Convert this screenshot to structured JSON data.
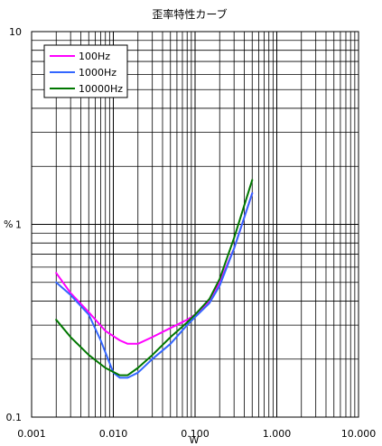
{
  "chart_data": {
    "type": "line",
    "title": "歪率特性カーブ",
    "xlabel": "W",
    "ylabel": "%",
    "x_scale": "log",
    "y_scale": "log",
    "xlim": [
      0.001,
      10
    ],
    "ylim": [
      0.1,
      10
    ],
    "grid": true,
    "legend_position": "top-left",
    "x_tick_labels": [
      "0.001",
      "0.010",
      "0.100",
      "1.000",
      "10.000"
    ],
    "y_tick_labels": [
      "0.1",
      "1",
      "10"
    ],
    "series": [
      {
        "name": "100Hz",
        "color": "#ff00ff",
        "points": [
          [
            0.002,
            0.56
          ],
          [
            0.003,
            0.44
          ],
          [
            0.005,
            0.35
          ],
          [
            0.008,
            0.28
          ],
          [
            0.012,
            0.25
          ],
          [
            0.015,
            0.24
          ],
          [
            0.02,
            0.24
          ],
          [
            0.03,
            0.26
          ],
          [
            0.05,
            0.29
          ],
          [
            0.08,
            0.32
          ],
          [
            0.1,
            0.34
          ],
          [
            0.15,
            0.4
          ],
          [
            0.2,
            0.5
          ],
          [
            0.3,
            0.75
          ],
          [
            0.5,
            1.45
          ]
        ]
      },
      {
        "name": "1000Hz",
        "color": "#3366ff",
        "points": [
          [
            0.002,
            0.5
          ],
          [
            0.003,
            0.43
          ],
          [
            0.005,
            0.34
          ],
          [
            0.007,
            0.25
          ],
          [
            0.01,
            0.17
          ],
          [
            0.012,
            0.16
          ],
          [
            0.015,
            0.16
          ],
          [
            0.02,
            0.17
          ],
          [
            0.03,
            0.2
          ],
          [
            0.05,
            0.24
          ],
          [
            0.08,
            0.3
          ],
          [
            0.1,
            0.33
          ],
          [
            0.15,
            0.39
          ],
          [
            0.2,
            0.48
          ],
          [
            0.3,
            0.75
          ],
          [
            0.5,
            1.45
          ]
        ]
      },
      {
        "name": "10000Hz",
        "color": "#007700",
        "points": [
          [
            0.002,
            0.32
          ],
          [
            0.003,
            0.26
          ],
          [
            0.005,
            0.21
          ],
          [
            0.008,
            0.18
          ],
          [
            0.012,
            0.165
          ],
          [
            0.015,
            0.165
          ],
          [
            0.02,
            0.18
          ],
          [
            0.03,
            0.21
          ],
          [
            0.05,
            0.26
          ],
          [
            0.08,
            0.31
          ],
          [
            0.1,
            0.34
          ],
          [
            0.15,
            0.41
          ],
          [
            0.2,
            0.52
          ],
          [
            0.3,
            0.85
          ],
          [
            0.5,
            1.7
          ]
        ]
      }
    ]
  }
}
